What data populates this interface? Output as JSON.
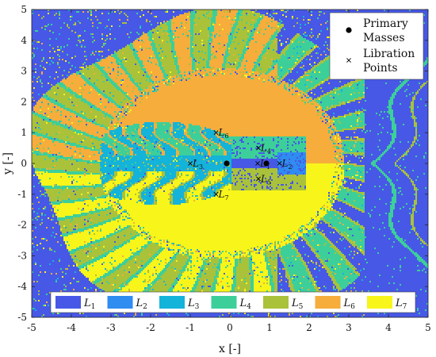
{
  "chart_data": {
    "type": "heatmap",
    "xlabel": "x [-]",
    "ylabel": "y [-]",
    "xlim": [
      -5,
      5
    ],
    "ylim": [
      -5,
      5
    ],
    "xticks": [
      -5,
      -4,
      -3,
      -2,
      -1,
      0,
      1,
      2,
      3,
      4,
      5
    ],
    "yticks": [
      -5,
      -4,
      -3,
      -2,
      -1,
      0,
      1,
      2,
      3,
      4,
      5
    ],
    "colors": {
      "L1": "#4758e6",
      "L2": "#2f8cf0",
      "L3": "#14b3d9",
      "L4": "#3ccf9a",
      "L5": "#a9c23a",
      "L6": "#f6ad3c",
      "L7": "#f8f51a"
    },
    "basin_legend": [
      {
        "key": "L1",
        "base": "L",
        "sub": "1"
      },
      {
        "key": "L2",
        "base": "L",
        "sub": "2"
      },
      {
        "key": "L3",
        "base": "L",
        "sub": "3"
      },
      {
        "key": "L4",
        "base": "L",
        "sub": "4"
      },
      {
        "key": "L5",
        "base": "L",
        "sub": "5"
      },
      {
        "key": "L6",
        "base": "L",
        "sub": "6"
      },
      {
        "key": "L7",
        "base": "L",
        "sub": "7"
      }
    ],
    "marker_legend": [
      {
        "symbol": "dot",
        "lines": [
          "Primary",
          "Masses"
        ]
      },
      {
        "symbol": "x",
        "lines": [
          "Libration",
          "Points"
        ]
      }
    ],
    "primary_masses": [
      {
        "x": -0.08,
        "y": 0
      },
      {
        "x": 0.92,
        "y": 0
      }
    ],
    "libration_points": [
      {
        "base": "L",
        "sub": "1",
        "x": 0.7,
        "y": 0
      },
      {
        "base": "L",
        "sub": "2",
        "x": 1.25,
        "y": 0
      },
      {
        "base": "L",
        "sub": "3",
        "x": -1.0,
        "y": 0
      },
      {
        "base": "L",
        "sub": "4",
        "x": 0.72,
        "y": 0.5
      },
      {
        "base": "L",
        "sub": "5",
        "x": 0.72,
        "y": -0.5
      },
      {
        "base": "L",
        "sub": "6",
        "x": -0.35,
        "y": 1.0
      },
      {
        "base": "L",
        "sub": "7",
        "x": -0.35,
        "y": -1.0
      }
    ]
  }
}
